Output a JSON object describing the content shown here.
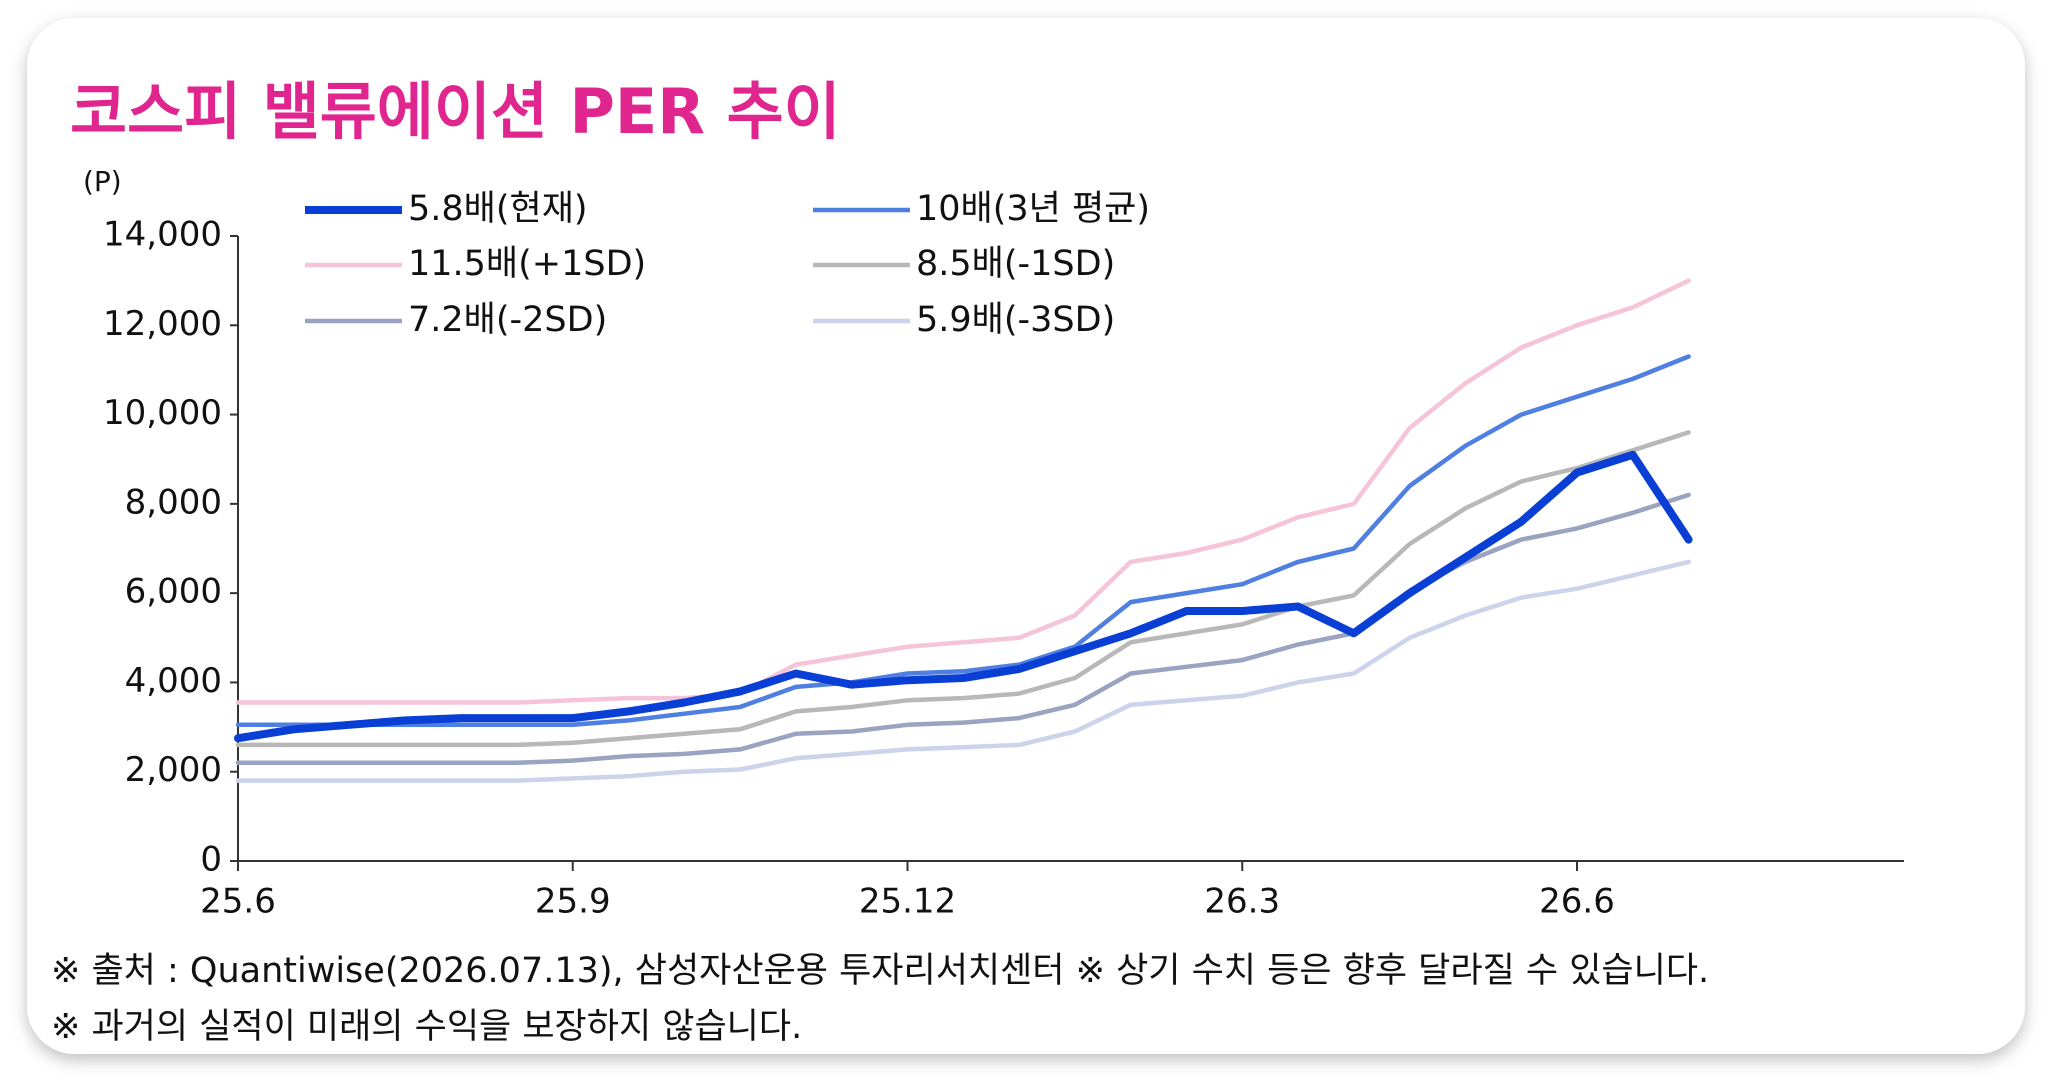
{
  "chart_data": {
    "type": "line",
    "title": "코스피 밸류에이션 PER 추이",
    "y_unit": "(P)",
    "categories": [
      "25.6",
      null,
      null,
      null,
      null,
      null,
      "25.9",
      null,
      null,
      null,
      null,
      null,
      "25.12",
      null,
      null,
      null,
      null,
      null,
      "26.3",
      null,
      null,
      null,
      null,
      null,
      "26.6",
      null,
      null,
      null,
      null,
      null,
      null
    ],
    "ylim": [
      0,
      14000
    ],
    "yticks": [
      0,
      {
        "value": 2000,
        "label": "2,000"
      },
      {
        "value": 4000,
        "label": "4,000"
      },
      {
        "value": 6000,
        "label": "6,000"
      },
      {
        "value": 8000,
        "label": "8,000"
      },
      {
        "value": 10000,
        "label": "10,000"
      },
      {
        "value": 12000,
        "label": "12,000"
      },
      {
        "value": 14000,
        "label": "14,000"
      }
    ],
    "grid": false,
    "legend": "top",
    "series": [
      {
        "name": "5.8배(현재)",
        "color": "#0a3fd6",
        "values": [
          2750,
          2950,
          3050,
          3150,
          3200,
          3200,
          3200,
          3350,
          3550,
          3800,
          4200,
          3950,
          4050,
          4100,
          4300,
          4700,
          5100,
          5600,
          5600,
          5700,
          5100,
          6000,
          6800,
          7600,
          8700,
          9100,
          7200,
          null,
          null,
          null,
          null
        ]
      },
      {
        "name": "10배(3년 평균)",
        "color": "#4f7fe0",
        "values": [
          3050,
          3050,
          3050,
          3050,
          3050,
          3050,
          3050,
          3150,
          3300,
          3450,
          3900,
          4000,
          4200,
          4250,
          4400,
          4800,
          5800,
          6000,
          6200,
          6700,
          7000,
          8400,
          9300,
          10000,
          10400,
          10800,
          11300,
          null,
          null,
          null,
          null
        ]
      },
      {
        "name": "11.5배(+1SD)",
        "color": "#f5c4d8",
        "values": [
          3550,
          3550,
          3550,
          3550,
          3550,
          3550,
          3600,
          3650,
          3650,
          3750,
          4400,
          4600,
          4800,
          4900,
          5000,
          5500,
          6700,
          6900,
          7200,
          7700,
          8000,
          9700,
          10700,
          11500,
          12000,
          12400,
          13000,
          null,
          null,
          null,
          null
        ]
      },
      {
        "name": "8.5배(-1SD)",
        "color": "#b8b8b8",
        "values": [
          2600,
          2600,
          2600,
          2600,
          2600,
          2600,
          2650,
          2750,
          2850,
          2950,
          3350,
          3450,
          3600,
          3650,
          3750,
          4100,
          4900,
          5100,
          5300,
          5700,
          5950,
          7100,
          7900,
          8500,
          8800,
          9200,
          9600,
          null,
          null,
          null,
          null
        ]
      },
      {
        "name": "7.2배(-2SD)",
        "color": "#9aa3bf",
        "values": [
          2200,
          2200,
          2200,
          2200,
          2200,
          2200,
          2250,
          2350,
          2400,
          2500,
          2850,
          2900,
          3050,
          3100,
          3200,
          3500,
          4200,
          4350,
          4500,
          4850,
          5100,
          6050,
          6700,
          7200,
          7450,
          7800,
          8200,
          null,
          null,
          null,
          null
        ]
      },
      {
        "name": "5.9배(-3SD)",
        "color": "#cdd3ea",
        "values": [
          1800,
          1800,
          1800,
          1800,
          1800,
          1800,
          1850,
          1900,
          2000,
          2050,
          2300,
          2400,
          2500,
          2550,
          2600,
          2900,
          3500,
          3600,
          3700,
          4000,
          4200,
          5000,
          5500,
          5900,
          6100,
          6400,
          6700,
          null,
          null,
          null,
          null
        ]
      }
    ],
    "annotations": [
      "※ 출처 : Quantiwise(2026.07.13), 삼성자산운용 투자리서치센터 ※ 상기 수치 등은 향후 달라질 수 있습니다.",
      "※ 과거의 실적이 미래의 수익을 보장하지 않습니다."
    ]
  }
}
